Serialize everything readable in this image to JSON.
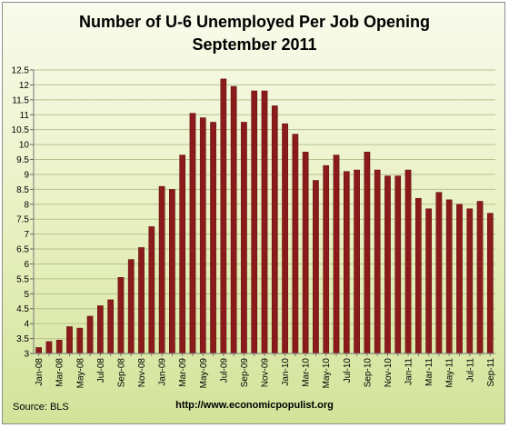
{
  "title_line1": "Number of U-6 Unemployed Per Job Opening",
  "title_line2": "September 2011",
  "source": "Source:  BLS",
  "url": "http://www.economicpopulist.org",
  "colors": {
    "bar": "#8b1a1a",
    "bar_edge": "#5c0f0f",
    "grid": "#b8c290"
  },
  "chart_data": {
    "type": "bar",
    "categories": [
      "Jan-08",
      "Feb-08",
      "Mar-08",
      "Apr-08",
      "May-08",
      "Jun-08",
      "Jul-08",
      "Aug-08",
      "Sep-08",
      "Oct-08",
      "Nov-08",
      "Dec-08",
      "Jan-09",
      "Feb-09",
      "Mar-09",
      "Apr-09",
      "May-09",
      "Jun-09",
      "Jul-09",
      "Aug-09",
      "Sep-09",
      "Oct-09",
      "Nov-09",
      "Dec-09",
      "Jan-10",
      "Feb-10",
      "Mar-10",
      "Apr-10",
      "May-10",
      "Jun-10",
      "Jul-10",
      "Aug-10",
      "Sep-10",
      "Oct-10",
      "Nov-10",
      "Dec-10",
      "Jan-11",
      "Feb-11",
      "Mar-11",
      "Apr-11",
      "May-11",
      "Jun-11",
      "Jul-11",
      "Aug-11",
      "Sep-11"
    ],
    "values": [
      3.2,
      3.4,
      3.45,
      3.9,
      3.85,
      4.25,
      4.6,
      4.8,
      5.55,
      6.15,
      6.55,
      7.25,
      8.6,
      8.5,
      9.65,
      11.05,
      10.9,
      10.75,
      12.2,
      11.95,
      10.75,
      11.8,
      11.8,
      11.3,
      10.7,
      10.35,
      9.75,
      8.8,
      9.3,
      9.65,
      9.1,
      9.15,
      9.75,
      9.15,
      8.95,
      8.95,
      9.15,
      8.2,
      7.85,
      8.4,
      8.15,
      8.0,
      7.85,
      8.1,
      7.7
    ],
    "x_tick_labels": [
      "Jan-08",
      "Mar-08",
      "May-08",
      "Jul-08",
      "Sep-08",
      "Nov-08",
      "Jan-09",
      "Mar-09",
      "May-09",
      "Jul-09",
      "Sep-09",
      "Nov-09",
      "Jan-10",
      "Mar-10",
      "May-10",
      "Jul-10",
      "Sep-10",
      "Nov-10",
      "Jan-11",
      "Mar-11",
      "May-11",
      "Jul-11",
      "Sep-11"
    ],
    "y_ticks": [
      3,
      3.5,
      4,
      4.5,
      5,
      5.5,
      6,
      6.5,
      7,
      7.5,
      8,
      8.5,
      9,
      9.5,
      10,
      10.5,
      11,
      11.5,
      12,
      12.5
    ],
    "y_tick_labels": [
      "3",
      "3.5",
      "4",
      "4.5",
      "5",
      "5.5",
      "6",
      "6.5",
      "7",
      "7.5",
      "8",
      "8.5",
      "9",
      "9.5",
      "10",
      "10.5",
      "11",
      "11.5",
      "12",
      "12.5"
    ],
    "ylim": [
      3,
      12.5
    ],
    "grid": true,
    "legend": "none"
  }
}
